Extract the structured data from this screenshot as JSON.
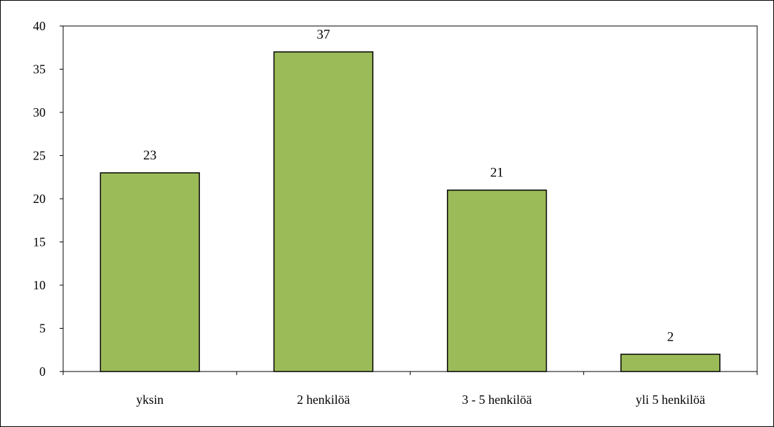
{
  "chart_data": {
    "type": "bar",
    "title": "",
    "xlabel": "",
    "ylabel": "",
    "categories": [
      "yksin",
      "2 henkilöä",
      "3 - 5 henkilöä",
      "yli 5 henkilöä"
    ],
    "values": [
      23,
      37,
      21,
      2
    ],
    "data_labels": [
      "23",
      "37",
      "21",
      "2"
    ],
    "ylim": [
      0,
      40
    ],
    "yticks": [
      0,
      5,
      10,
      15,
      20,
      25,
      30,
      35,
      40
    ],
    "ytick_labels": [
      "0",
      "5",
      "10",
      "15",
      "20",
      "25",
      "30",
      "35",
      "40"
    ],
    "grid": false,
    "legend": "none",
    "bar_color": "#9BBB59",
    "bar_edge_color": "#000000"
  }
}
